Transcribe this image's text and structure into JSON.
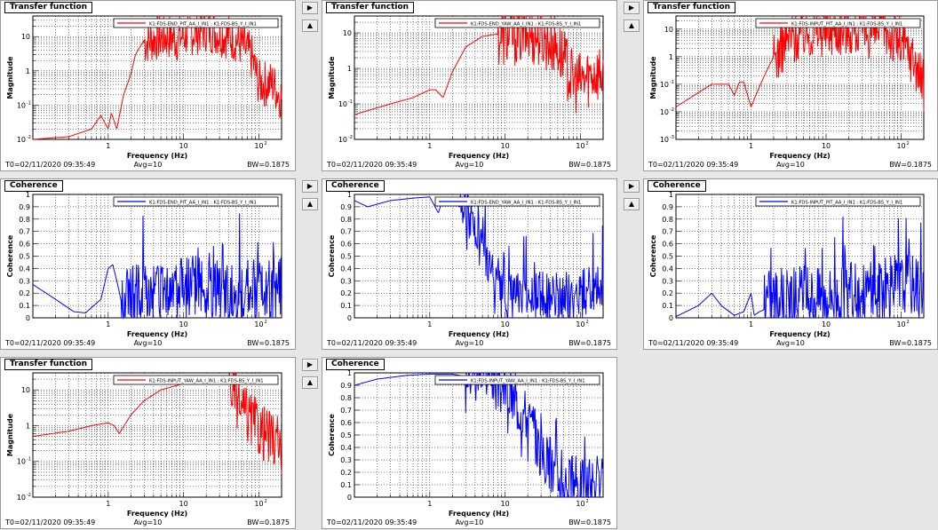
{
  "controls": {
    "right_arrow": "▶",
    "up_arrow": "▲"
  },
  "colors": {
    "transfer": "#ff0000",
    "coherence": "#0000ff",
    "background": "#e6e6e6"
  },
  "panels": [
    {
      "id": "p1",
      "title": "Transfer function",
      "type": "transfer",
      "legend": "K1:FDS-END_PIT_AA_I_IN1 : K1:FDS-BS_Y_I_IN1",
      "ylabel": "Magnitude",
      "xlabel": "Frequency (Hz)",
      "t0": "T0=02/11/2020 09:35:49",
      "avg": "Avg=10",
      "bw": "BW=0.1875"
    },
    {
      "id": "p2",
      "title": "Transfer function",
      "type": "transfer",
      "legend": "K1:FDS-END_YAW_AA_I_IN1 : K1:FDS-BS_Y_I_IN1",
      "ylabel": "Magnitude",
      "xlabel": "Frequency (Hz)",
      "t0": "T0=02/11/2020 09:35:49",
      "avg": "Avg=10",
      "bw": "BW=0.1875"
    },
    {
      "id": "p3",
      "title": "Transfer function",
      "type": "transfer",
      "legend": "K1:FDS-INPUT_PIT_AA_I_IN1 : K1:FDS-BS_Y_I_IN1",
      "ylabel": "Magnitude",
      "xlabel": "Frequency (Hz)",
      "t0": "T0=02/11/2020 09:35:49",
      "avg": "Avg=10",
      "bw": "BW=0.1875"
    },
    {
      "id": "p4",
      "title": "Coherence",
      "type": "coherence",
      "legend": "K1:FDS-END_PIT_AA_I_IN1 : K1:FDS-BS_Y_I_IN1",
      "ylabel": "Coherence",
      "xlabel": "Frequency (Hz)",
      "t0": "T0=02/11/2020 09:35:49",
      "avg": "Avg=10",
      "bw": "BW=0.1875"
    },
    {
      "id": "p5",
      "title": "Coherence",
      "type": "coherence",
      "legend": "K1:FDS-END_YAW_AA_I_IN1 : K1:FDS-BS_Y_I_IN1",
      "ylabel": "Coherence",
      "xlabel": "Frequency (Hz)",
      "t0": "T0=02/11/2020 09:35:49",
      "avg": "Avg=10",
      "bw": "BW=0.1875"
    },
    {
      "id": "p6",
      "title": "Coherence",
      "type": "coherence",
      "legend": "K1:FDS-INPUT_PIT_AA_I_IN1 : K1:FDS-BS_Y_I_IN1",
      "ylabel": "Coherence",
      "xlabel": "Frequency (Hz)",
      "t0": "T0=02/11/2020 09:35:49",
      "avg": "Avg=10",
      "bw": "BW=0.1875"
    },
    {
      "id": "p7",
      "title": "Transfer function",
      "type": "transfer",
      "legend": "K1:FDS-INPUT_YAW_AA_I_IN1 : K1:FDS-BS_Y_I_IN1",
      "ylabel": "Magnitude",
      "xlabel": "Frequency (Hz)",
      "t0": "T0=02/11/2020 09:35:49",
      "avg": "Avg=10",
      "bw": "BW=0.1875"
    },
    {
      "id": "p8",
      "title": "Coherence",
      "type": "coherence",
      "legend": "K1:FDS-INPUT_YAW_AA_I_IN1 : K1:FDS-BS_Y_I_IN1",
      "ylabel": "Coherence",
      "xlabel": "Frequency (Hz)",
      "t0": "T0=02/11/2020 09:35:49",
      "avg": "Avg=10",
      "bw": "BW=0.1875"
    }
  ],
  "chart_data": [
    {
      "type": "line",
      "title": "Transfer function",
      "xlabel": "Frequency (Hz)",
      "ylabel": "Magnitude",
      "xscale": "log",
      "yscale": "log",
      "xlim": [
        0.1,
        200
      ],
      "ylim": [
        0.01,
        40
      ],
      "grid": true,
      "legend_position": "top-right",
      "legend": "K1:FDS-END_PIT_AA_I_IN1 : K1:FDS-BS_Y_I_IN1",
      "x": [
        0.1,
        0.3,
        0.6,
        0.8,
        1.0,
        1.1,
        1.3,
        1.6,
        2.0,
        2.3,
        3,
        4,
        6,
        8,
        12,
        20,
        30,
        50,
        80,
        100,
        150,
        200
      ],
      "y": [
        0.01,
        0.012,
        0.02,
        0.05,
        0.02,
        0.06,
        0.02,
        0.2,
        0.8,
        3,
        8,
        10,
        12,
        10,
        15,
        20,
        15,
        10,
        3,
        0.5,
        0.5,
        0.2
      ],
      "noise_from": 3.0,
      "noise_amp": 0.7
    },
    {
      "type": "line",
      "title": "Transfer function",
      "xlabel": "Frequency (Hz)",
      "ylabel": "Magnitude",
      "xscale": "log",
      "yscale": "log",
      "xlim": [
        0.1,
        200
      ],
      "ylim": [
        0.01,
        30
      ],
      "grid": true,
      "legend_position": "top-right",
      "legend": "K1:FDS-END_YAW_AA_I_IN1 : K1:FDS-BS_Y_I_IN1",
      "x": [
        0.1,
        0.3,
        0.6,
        1.0,
        1.2,
        1.5,
        2,
        3,
        5,
        10,
        20,
        30,
        50,
        80,
        100,
        150,
        200
      ],
      "y": [
        0.05,
        0.1,
        0.15,
        0.25,
        0.25,
        0.15,
        0.8,
        4,
        8,
        10,
        12,
        10,
        5,
        0.5,
        0.5,
        1,
        1
      ],
      "noise_from": 8.0,
      "noise_amp": 0.9
    },
    {
      "type": "line",
      "title": "Transfer function",
      "xlabel": "Frequency (Hz)",
      "ylabel": "Magnitude",
      "xscale": "log",
      "yscale": "log",
      "xlim": [
        0.1,
        200
      ],
      "ylim": [
        0.001,
        30
      ],
      "grid": true,
      "legend_position": "top-right",
      "legend": "K1:FDS-INPUT_PIT_AA_I_IN1 : K1:FDS-BS_Y_I_IN1",
      "x": [
        0.1,
        0.2,
        0.3,
        0.5,
        0.6,
        0.7,
        0.8,
        1.0,
        1.2,
        1.5,
        2,
        3,
        5,
        10,
        20,
        40,
        60,
        100,
        150,
        200
      ],
      "y": [
        0.015,
        0.05,
        0.1,
        0.1,
        0.04,
        0.12,
        0.12,
        0.015,
        0.05,
        0.2,
        1,
        5,
        10,
        12,
        15,
        10,
        12,
        4,
        1,
        0.1
      ],
      "noise_from": 2.0,
      "noise_amp": 1.0
    },
    {
      "type": "line",
      "title": "Coherence",
      "xlabel": "Frequency (Hz)",
      "ylabel": "Coherence",
      "xscale": "log",
      "yscale": "linear",
      "xlim": [
        0.1,
        200
      ],
      "ylim": [
        0,
        1
      ],
      "grid": true,
      "legend_position": "top-right",
      "legend": "K1:FDS-END_PIT_AA_I_IN1 : K1:FDS-BS_Y_I_IN1",
      "x": [
        0.1,
        0.2,
        0.35,
        0.5,
        0.8,
        1.0,
        1.15,
        1.3,
        1.6,
        2,
        5,
        10,
        30,
        100,
        200
      ],
      "y": [
        0.27,
        0.15,
        0.05,
        0.04,
        0.15,
        0.4,
        0.43,
        0.3,
        0.05,
        0.1,
        0.15,
        0.2,
        0.15,
        0.15,
        0.2
      ],
      "noise_from": 1.5,
      "noise_amp": 0.5
    },
    {
      "type": "line",
      "title": "Coherence",
      "xlabel": "Frequency (Hz)",
      "ylabel": "Coherence",
      "xscale": "log",
      "yscale": "linear",
      "xlim": [
        0.1,
        200
      ],
      "ylim": [
        0,
        1
      ],
      "grid": true,
      "legend_position": "top-right",
      "legend": "K1:FDS-END_YAW_AA_I_IN1 : K1:FDS-BS_Y_I_IN1",
      "x": [
        0.1,
        0.15,
        0.3,
        0.6,
        1.0,
        1.3,
        1.5,
        2,
        3,
        5,
        8,
        10,
        20,
        50,
        100,
        200
      ],
      "y": [
        0.95,
        0.9,
        0.95,
        0.97,
        0.98,
        0.85,
        0.97,
        0.95,
        0.85,
        0.5,
        0.2,
        0.08,
        0.15,
        0.1,
        0.15,
        0.2
      ],
      "noise_from": 2.5,
      "noise_amp": 0.4
    },
    {
      "type": "line",
      "title": "Coherence",
      "xlabel": "Frequency (Hz)",
      "ylabel": "Coherence",
      "xscale": "log",
      "yscale": "linear",
      "xlim": [
        0.1,
        200
      ],
      "ylim": [
        0,
        1
      ],
      "grid": true,
      "legend_position": "top-right",
      "legend": "K1:FDS-INPUT_PIT_AA_I_IN1 : K1:FDS-BS_Y_I_IN1",
      "x": [
        0.1,
        0.2,
        0.3,
        0.4,
        0.6,
        0.8,
        1.0,
        1.1,
        1.3,
        2,
        5,
        10,
        50,
        100,
        200
      ],
      "y": [
        0.01,
        0.1,
        0.2,
        0.1,
        0.02,
        0.05,
        0.2,
        0.02,
        0.05,
        0.1,
        0.1,
        0.1,
        0.15,
        0.2,
        0.2
      ],
      "noise_from": 1.5,
      "noise_amp": 0.5
    },
    {
      "type": "line",
      "title": "Transfer function",
      "xlabel": "Frequency (Hz)",
      "ylabel": "Magnitude",
      "xscale": "log",
      "yscale": "log",
      "xlim": [
        0.1,
        200
      ],
      "ylim": [
        0.01,
        30
      ],
      "grid": true,
      "legend_position": "top-right",
      "legend": "K1:FDS-INPUT_YAW_AA_I_IN1 : K1:FDS-BS_Y_I_IN1",
      "x": [
        0.1,
        0.3,
        0.6,
        1.0,
        1.2,
        1.4,
        2,
        3,
        5,
        10,
        20,
        40,
        60,
        100,
        150,
        200
      ],
      "y": [
        0.5,
        0.7,
        1.0,
        1.2,
        1.0,
        0.6,
        2,
        5,
        10,
        15,
        20,
        20,
        3,
        1,
        0.5,
        0.3
      ],
      "noise_from": 40.0,
      "noise_amp": 0.8
    },
    {
      "type": "line",
      "title": "Coherence",
      "xlabel": "Frequency (Hz)",
      "ylabel": "Coherence",
      "xscale": "log",
      "yscale": "linear",
      "xlim": [
        0.1,
        200
      ],
      "ylim": [
        0,
        1
      ],
      "grid": true,
      "legend_position": "top-right",
      "legend": "K1:FDS-INPUT_YAW_AA_I_IN1 : K1:FDS-BS_Y_I_IN1",
      "x": [
        0.1,
        0.2,
        0.5,
        1.0,
        2,
        5,
        10,
        20,
        30,
        50,
        100,
        200
      ],
      "y": [
        0.9,
        0.95,
        0.98,
        0.99,
        0.99,
        0.95,
        0.8,
        0.6,
        0.3,
        0.1,
        0.05,
        0.05
      ],
      "noise_from": 3.0,
      "noise_amp": 0.45
    }
  ]
}
